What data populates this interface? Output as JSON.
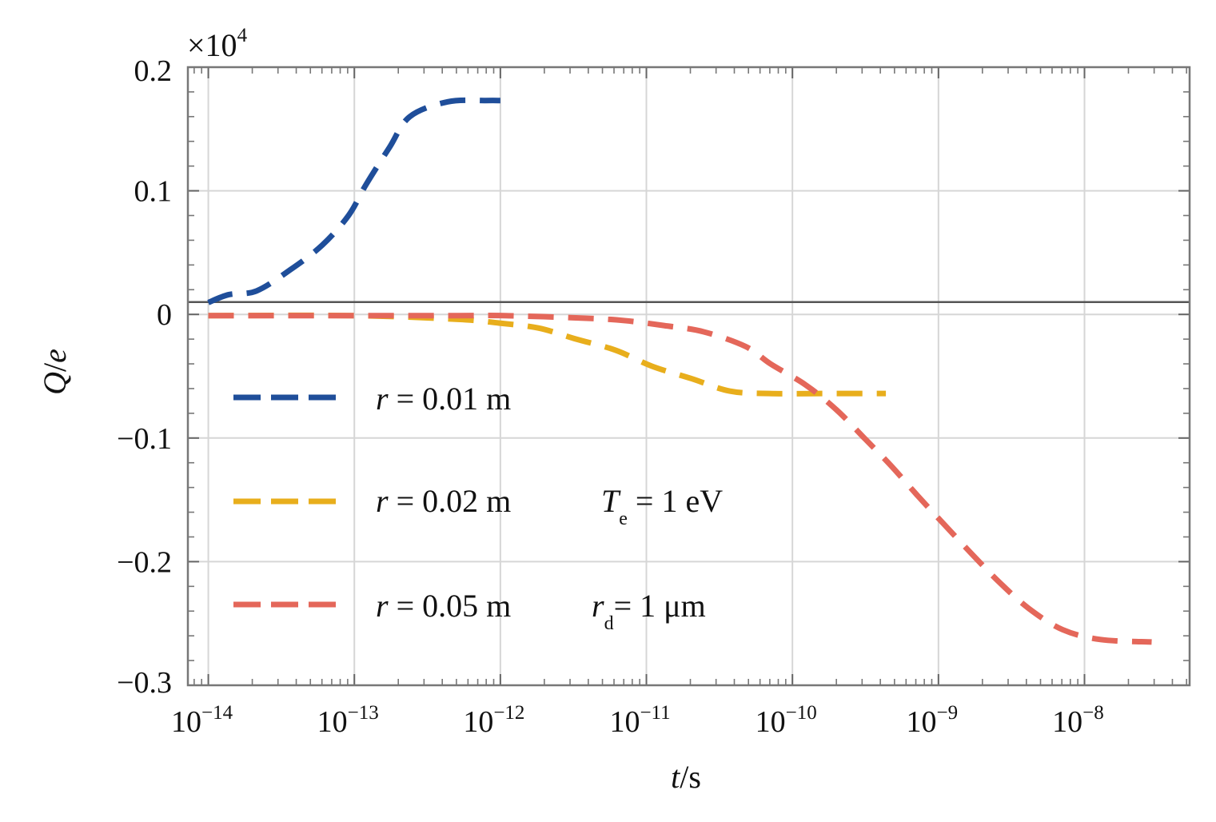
{
  "chart_data": {
    "type": "line",
    "title": "",
    "xlabel": "t/s",
    "xlabel_var": "t",
    "xlabel_unit": "s",
    "ylabel": "Q/e",
    "ylabel_var": "Q",
    "ylabel_unit": "e",
    "y_multiplier": "×10",
    "y_multiplier_exp": "4",
    "x_scale": "log",
    "xlim_log10": [
      -14.14,
      -7.28
    ],
    "ylim": [
      -0.3,
      0.2
    ],
    "grid": true,
    "x_ticks": [
      {
        "value": -14,
        "base": "10",
        "exp": "−14"
      },
      {
        "value": -13,
        "base": "10",
        "exp": "−13"
      },
      {
        "value": -12,
        "base": "10",
        "exp": "−12"
      },
      {
        "value": -11,
        "base": "10",
        "exp": "−11"
      },
      {
        "value": -10,
        "base": "10",
        "exp": "−10"
      },
      {
        "value": -9,
        "base": "10",
        "exp": "−9"
      },
      {
        "value": -8,
        "base": "10",
        "exp": "−8"
      }
    ],
    "y_ticks": [
      {
        "value": 0.2,
        "label": "0.2"
      },
      {
        "value": 0.1,
        "label": "0.1"
      },
      {
        "value": 0,
        "label": "0"
      },
      {
        "value": -0.1,
        "label": "−0.1"
      },
      {
        "value": -0.2,
        "label": "−0.2"
      },
      {
        "value": -0.3,
        "label": "−0.3"
      }
    ],
    "reference_line_y": 0.01,
    "legend_position": "center-left",
    "series": [
      {
        "name": "r = 0.01 m",
        "var": "r",
        "text": " = 0.01 m",
        "color": "#1f4e9a",
        "x_log10": [
          -14.0,
          -13.86,
          -13.67,
          -13.44,
          -13.22,
          -13.04,
          -12.92,
          -12.76,
          -12.62,
          -12.36,
          -12.1,
          -12.0
        ],
        "y": [
          0.0096,
          0.016,
          0.019,
          0.036,
          0.056,
          0.08,
          0.105,
          0.135,
          0.16,
          0.172,
          0.173,
          0.173
        ]
      },
      {
        "name": "r = 0.02 m",
        "var": "r",
        "text": " = 0.02 m",
        "color": "#e8ae1c",
        "x_log10": [
          -14.0,
          -13.0,
          -12.29,
          -12.01,
          -11.74,
          -11.48,
          -11.21,
          -10.96,
          -10.69,
          -10.43,
          -10.16,
          -9.8,
          -9.36
        ],
        "y": [
          -0.001,
          -0.001,
          -0.004,
          -0.007,
          -0.011,
          -0.02,
          -0.029,
          -0.042,
          -0.052,
          -0.062,
          -0.064,
          -0.064,
          -0.064
        ]
      },
      {
        "name": "r = 0.05 m",
        "var": "r",
        "text": " = 0.05 m",
        "color": "#e4675a",
        "x_log10": [
          -14.0,
          -13.0,
          -12.29,
          -11.97,
          -11.43,
          -11.15,
          -10.88,
          -10.61,
          -10.32,
          -10.15,
          -9.91,
          -9.7,
          -9.5,
          -9.32,
          -9.14,
          -8.96,
          -8.77,
          -8.58,
          -8.38,
          -8.15,
          -7.89,
          -7.54
        ],
        "y": [
          -0.001,
          -0.001,
          -0.001,
          -0.001,
          -0.003,
          -0.005,
          -0.009,
          -0.014,
          -0.026,
          -0.04,
          -0.057,
          -0.077,
          -0.101,
          -0.123,
          -0.147,
          -0.17,
          -0.194,
          -0.217,
          -0.238,
          -0.255,
          -0.263,
          -0.265
        ]
      }
    ],
    "annotations": [
      {
        "var": "T",
        "sub": "e",
        "text": " = 1 eV"
      },
      {
        "var": "r",
        "sub": "d",
        "text": "= 1 μm"
      }
    ]
  }
}
